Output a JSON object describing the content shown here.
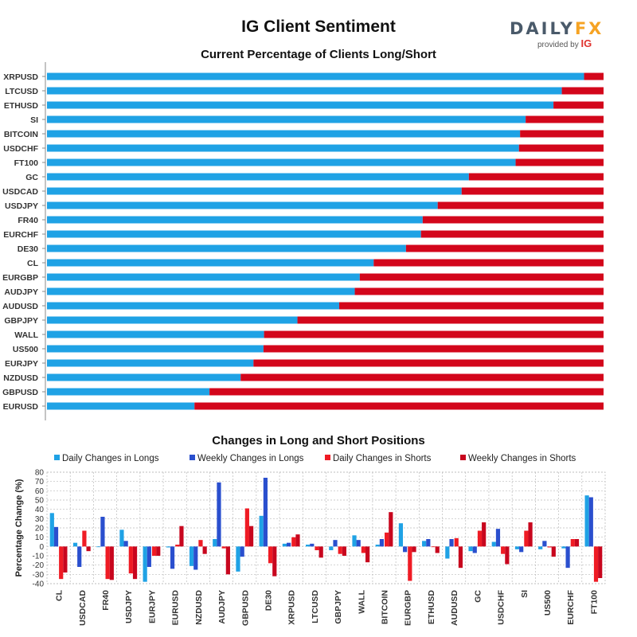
{
  "header": {
    "title": "IG Client Sentiment",
    "logo_main": "DAILY",
    "logo_accent": "FX",
    "logo_provided": "provided by",
    "logo_ig": "IG"
  },
  "colors": {
    "long": "#1fa2e5",
    "short": "#d3061b",
    "daily_longs": "#1fa2e5",
    "weekly_longs": "#2a4fce",
    "daily_shorts": "#ef1b24",
    "weekly_shorts": "#c8061e"
  },
  "chart_data": [
    {
      "type": "bar",
      "orientation": "horizontal-stacked",
      "title": "Current Percentage of Clients Long/Short",
      "categories": [
        "XRPUSD",
        "LTCUSD",
        "ETHUSD",
        "SI",
        "BITCOIN",
        "USDCHF",
        "FT100",
        "GC",
        "USDCAD",
        "USDJPY",
        "FR40",
        "EURCHF",
        "DE30",
        "CL",
        "EURGBP",
        "AUDJPY",
        "AUDUSD",
        "GBPJPY",
        "WALL",
        "US500",
        "EURJPY",
        "NZDUSD",
        "GBPUSD",
        "EURUSD"
      ],
      "series": [
        {
          "values": [
            96.5,
            92.5,
            91,
            86,
            85,
            84.8,
            84.2,
            75.8,
            74.5,
            70.2,
            67.5,
            67.2,
            64.5,
            58.7,
            56.2,
            55.3,
            52.5,
            45,
            39,
            38.9,
            37.1,
            34.8,
            29.2,
            26.5
          ]
        },
        {
          "values": [
            3.5,
            7.5,
            9,
            14,
            15,
            15.2,
            15.8,
            24.2,
            25.5,
            29.8,
            32.5,
            32.8,
            35.5,
            41.3,
            43.8,
            44.7,
            47.5,
            55,
            61,
            61.1,
            62.9,
            65.2,
            70.8,
            73.5
          ]
        }
      ],
      "xlim": [
        0,
        100
      ],
      "grid": false
    },
    {
      "type": "bar",
      "title": "Changes in Long and Short Positions",
      "ylabel": "Percentage Change (%)",
      "ylim": [
        -40,
        80
      ],
      "yticks": [
        80,
        70,
        60,
        50,
        40,
        30,
        20,
        10,
        0,
        -10,
        -20,
        -30,
        -40
      ],
      "grid": true,
      "legend_position": "top",
      "categories": [
        "CL",
        "USDCAD",
        "FR40",
        "USDJPY",
        "EURJPY",
        "EURUSD",
        "NZDUSD",
        "AUDJPY",
        "GBPUSD",
        "DE30",
        "XRPUSD",
        "LTCUSD",
        "GBPJPY",
        "WALL",
        "BITCOIN",
        "EURGBP",
        "ETHUSD",
        "AUDUSD",
        "GC",
        "USDCHF",
        "SI",
        "US500",
        "EURCHF",
        "FT100"
      ],
      "series": [
        {
          "name": "Daily Changes in Longs",
          "values": [
            36,
            4,
            0,
            18,
            -38,
            -1,
            -21,
            8,
            -27,
            33,
            3,
            2,
            -4,
            12,
            2,
            25,
            6,
            -13,
            -5,
            5,
            -3,
            -3,
            -2,
            55
          ]
        },
        {
          "name": "Weekly Changes in Longs",
          "values": [
            21,
            -22,
            32,
            6,
            -22,
            -24,
            -25,
            69,
            -11,
            74,
            4,
            3,
            7,
            7,
            8,
            -6,
            8,
            8,
            -7,
            19,
            -6,
            6,
            -23,
            53
          ]
        },
        {
          "name": "Daily Changes in Shorts",
          "values": [
            -35,
            17,
            -35,
            -29,
            -10,
            2,
            7,
            -2,
            41,
            -18,
            10,
            -4,
            -8,
            -7,
            15,
            -37,
            0,
            9,
            17,
            -8,
            17,
            -1,
            8,
            -38
          ]
        },
        {
          "name": "Weekly Changes in Shorts",
          "values": [
            -28,
            -5,
            -36,
            -35,
            -10,
            22,
            -8,
            -30,
            22,
            -32,
            13,
            -12,
            -10,
            -17,
            37,
            -6,
            -7,
            -23,
            26,
            -19,
            26,
            -11,
            8,
            -34
          ]
        }
      ]
    }
  ]
}
